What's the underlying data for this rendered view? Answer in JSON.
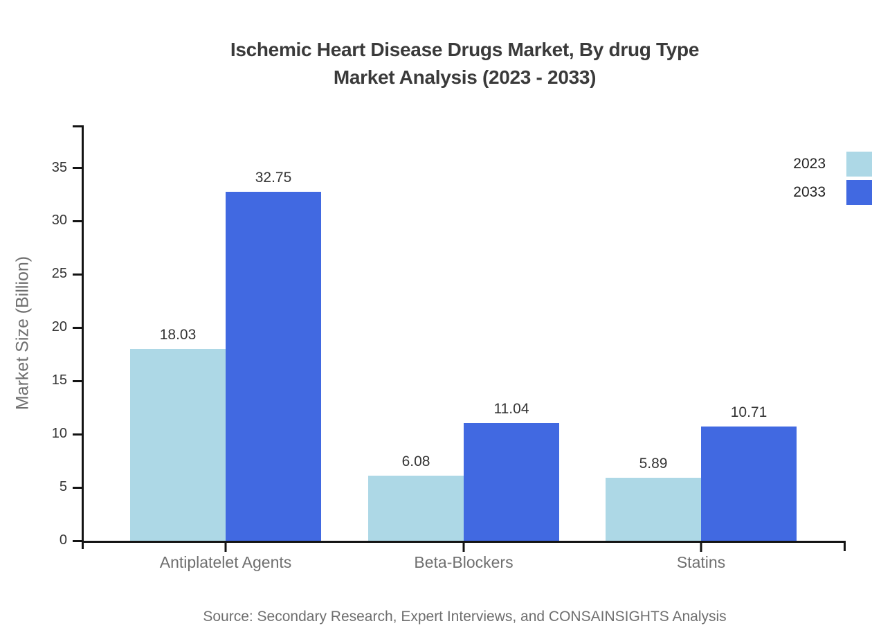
{
  "title": {
    "line1": "Ischemic Heart Disease Drugs Market, By drug Type",
    "line2": "Market Analysis (2023 - 2033)"
  },
  "chart_data": {
    "type": "bar",
    "title": "Ischemic Heart Disease Drugs Market, By drug Type Market Analysis (2023 - 2033)",
    "ylabel": "Market Size (Billion)",
    "xlabel": "",
    "categories": [
      "Antiplatelet Agents",
      "Beta-Blockers",
      "Statins"
    ],
    "series": [
      {
        "name": "2023",
        "color": "#ADD8E6",
        "values": [
          18.03,
          6.08,
          5.89
        ]
      },
      {
        "name": "2033",
        "color": "#4169E1",
        "values": [
          32.75,
          11.04,
          10.71
        ]
      }
    ],
    "yticks": [
      0,
      5,
      10,
      15,
      20,
      25,
      30,
      35
    ],
    "ylim": [
      0,
      39
    ],
    "grid": false,
    "legend_position": "top-right",
    "value_labels": true,
    "value_label_decimals": 2
  },
  "source": {
    "text": "Source: Secondary Research, Expert Interviews, and CONSAINSIGHTS Analysis"
  },
  "colors": {
    "series_2023": "#ADD8E6",
    "series_2033": "#4169E1",
    "axis": "#141414",
    "title_text": "#3a3a3a",
    "muted_text": "#6f6f6f",
    "value_text": "#333333",
    "background": "#ffffff"
  }
}
